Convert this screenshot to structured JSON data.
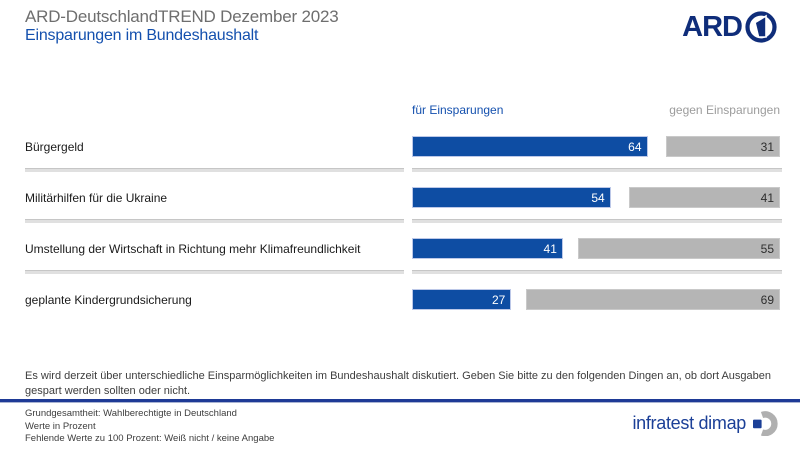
{
  "header": {
    "title": "ARD-DeutschlandTREND Dezember 2023",
    "subtitle": "Einsparungen im Bundeshaushalt",
    "ard_logo_text": "ARD",
    "ard_logo_number": "1"
  },
  "chart_data": {
    "type": "bar",
    "orientation": "horizontal",
    "title": "Einsparungen im Bundeshaushalt",
    "value_unit": "Prozent",
    "xlim": [
      0,
      100
    ],
    "categories": [
      "Bürgergeld",
      "Militärhilfen für die Ukraine",
      "Umstellung der Wirtschaft in Richtung mehr Klimafreundlichkeit",
      "geplante Kindergrundsicherung"
    ],
    "series": [
      {
        "name": "für Einsparungen",
        "color": "#0e4da3",
        "values": [
          64,
          54,
          41,
          27
        ]
      },
      {
        "name": "gegen Einsparungen",
        "color": "#b5b5b5",
        "values": [
          31,
          41,
          55,
          69
        ]
      }
    ],
    "legend_position": "top",
    "grid": false,
    "note": "Fehlende Werte zu 100 Prozent: Weiß nicht / keine Angabe"
  },
  "column_headers": {
    "left": "für Einsparungen",
    "right": "gegen Einsparungen"
  },
  "footer": {
    "question": "Es wird derzeit über unterschiedliche Einsparmöglichkeiten im Bundeshaushalt diskutiert. Geben Sie bitte zu den folgenden Dingen an, ob dort Ausgaben gespart werden sollten oder nicht.",
    "notes": [
      "Grundgesamtheit: Wahlberechtigte in Deutschland",
      "Werte in Prozent",
      "Fehlende Werte zu 100 Prozent: Weiß nicht / keine Angabe"
    ],
    "brand": "infratest dimap"
  },
  "colors": {
    "bar_for": "#0e4da3",
    "bar_against": "#b5b5b5",
    "accent_blue": "#1450ae",
    "ard_navy": "#0f2d7a",
    "title_gray": "#6e6e6e",
    "rule_navy": "#1e3a96"
  }
}
